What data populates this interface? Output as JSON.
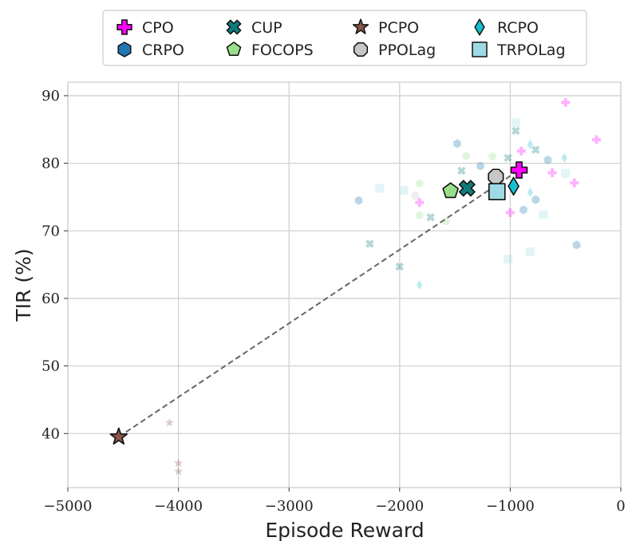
{
  "chart_data": {
    "type": "scatter",
    "title": "",
    "xlabel": "Episode Reward",
    "ylabel": "TIR (%)",
    "xlim": [
      -5000,
      0
    ],
    "ylim": [
      32,
      92
    ],
    "xticks": [
      -5000,
      -4000,
      -3000,
      -2000,
      -1000,
      0
    ],
    "xtick_labels": [
      "−5000",
      "−4000",
      "−3000",
      "−2000",
      "−1000",
      "0"
    ],
    "yticks": [
      40,
      50,
      60,
      70,
      80,
      90
    ],
    "ytick_labels": [
      "40",
      "50",
      "60",
      "70",
      "80",
      "90"
    ],
    "grid": true,
    "legend_position": "top-center",
    "series": [
      {
        "name": "CPO",
        "marker": "plus",
        "color": "#ff00ff",
        "mean": {
          "x": -920,
          "y": 79.0
        },
        "runs": [
          {
            "x": -500,
            "y": 89.0
          },
          {
            "x": -220,
            "y": 83.5
          },
          {
            "x": -900,
            "y": 81.8
          },
          {
            "x": -620,
            "y": 78.6
          },
          {
            "x": -420,
            "y": 77.1
          },
          {
            "x": -1820,
            "y": 74.2
          },
          {
            "x": -1000,
            "y": 72.7
          }
        ]
      },
      {
        "name": "CUP",
        "marker": "x",
        "color": "#0f7b7b",
        "mean": {
          "x": -1390,
          "y": 76.3
        },
        "runs": [
          {
            "x": -950,
            "y": 84.8
          },
          {
            "x": -770,
            "y": 82.0
          },
          {
            "x": -1020,
            "y": 80.8
          },
          {
            "x": -1440,
            "y": 78.9
          },
          {
            "x": -1720,
            "y": 72.0
          },
          {
            "x": -2270,
            "y": 68.1
          },
          {
            "x": -2000,
            "y": 64.7
          }
        ]
      },
      {
        "name": "PCPO",
        "marker": "star",
        "color": "#8c564b",
        "mean": {
          "x": -4540,
          "y": 39.5
        },
        "runs": [
          {
            "x": -4080,
            "y": 41.6
          },
          {
            "x": -4000,
            "y": 35.6
          },
          {
            "x": -4000,
            "y": 34.4
          }
        ]
      },
      {
        "name": "RCPO",
        "marker": "diamond",
        "color": "#17becf",
        "mean": {
          "x": -970,
          "y": 76.6
        },
        "runs": [
          {
            "x": -820,
            "y": 82.8
          },
          {
            "x": -510,
            "y": 80.8
          },
          {
            "x": -820,
            "y": 75.7
          },
          {
            "x": -1820,
            "y": 62.0
          }
        ]
      },
      {
        "name": "CRPO",
        "marker": "hexagon",
        "color": "#1f77b4",
        "mean": {
          "x": -1130,
          "y": 75.8
        },
        "runs": [
          {
            "x": -1480,
            "y": 82.9
          },
          {
            "x": -1270,
            "y": 79.6
          },
          {
            "x": -660,
            "y": 80.5
          },
          {
            "x": -2370,
            "y": 74.5
          },
          {
            "x": -770,
            "y": 74.6
          },
          {
            "x": -880,
            "y": 73.1
          },
          {
            "x": -400,
            "y": 67.9
          }
        ]
      },
      {
        "name": "FOCOPS",
        "marker": "pentagon",
        "color": "#98df8a",
        "mean": {
          "x": -1540,
          "y": 75.9
        },
        "runs": [
          {
            "x": -1400,
            "y": 81.1
          },
          {
            "x": -1160,
            "y": 81.0
          },
          {
            "x": -1820,
            "y": 77.0
          },
          {
            "x": -1820,
            "y": 72.3
          },
          {
            "x": -1580,
            "y": 71.4
          }
        ]
      },
      {
        "name": "PPOLag",
        "marker": "octagon",
        "color": "#c7c7c7",
        "mean": {
          "x": -1130,
          "y": 78.0
        },
        "runs": [
          {
            "x": -940,
            "y": 79.5
          },
          {
            "x": -1860,
            "y": 75.2
          }
        ]
      },
      {
        "name": "TRPOLag",
        "marker": "square",
        "color": "#9edae5",
        "mean": {
          "x": -1120,
          "y": 75.8
        },
        "runs": [
          {
            "x": -950,
            "y": 86.0
          },
          {
            "x": -500,
            "y": 78.5
          },
          {
            "x": -2180,
            "y": 76.3
          },
          {
            "x": -1960,
            "y": 76.0
          },
          {
            "x": -700,
            "y": 72.4
          },
          {
            "x": -1020,
            "y": 65.8
          },
          {
            "x": -820,
            "y": 66.9
          }
        ]
      }
    ],
    "dashed_line": {
      "from": {
        "x": -4540,
        "y": 39.5
      },
      "to": {
        "x": -920,
        "y": 79.0
      },
      "color": "#666666"
    }
  }
}
